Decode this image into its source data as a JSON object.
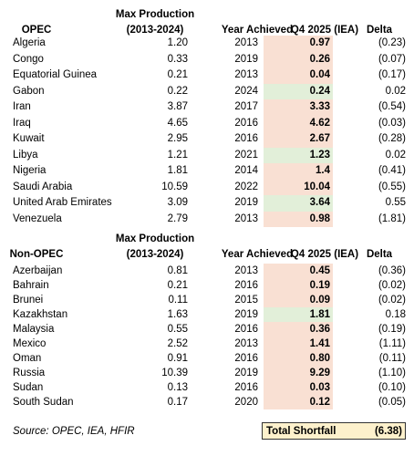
{
  "sections": [
    {
      "group": "OPEC",
      "header": [
        "Max Production",
        "(2013-2024)",
        "Year Achieved",
        "Q4 2025 (IEA)",
        "Delta"
      ],
      "rows": [
        [
          "Algeria",
          "1.20",
          "2013",
          "0.97",
          "(0.23)"
        ],
        [
          "Congo",
          "0.33",
          "2019",
          "0.26",
          "(0.07)"
        ],
        [
          "Equatorial Guinea",
          "0.21",
          "2013",
          "0.04",
          "(0.17)"
        ],
        [
          "Gabon",
          "0.22",
          "2024",
          "0.24",
          "0.02"
        ],
        [
          "Iran",
          "3.87",
          "2017",
          "3.33",
          "(0.54)"
        ],
        [
          "Iraq",
          "4.65",
          "2016",
          "4.62",
          "(0.03)"
        ],
        [
          "Kuwait",
          "2.95",
          "2016",
          "2.67",
          "(0.28)"
        ],
        [
          "Libya",
          "1.21",
          "2021",
          "1.23",
          "0.02"
        ],
        [
          "Nigeria",
          "1.81",
          "2014",
          "1.4",
          "(0.41)"
        ],
        [
          "Saudi Arabia",
          "10.59",
          "2022",
          "10.04",
          "(0.55)"
        ],
        [
          "United Arab Emirates",
          "3.09",
          "2019",
          "3.64",
          "0.55"
        ],
        [
          "Venezuela",
          "2.79",
          "2013",
          "0.98",
          "(1.81)"
        ]
      ]
    },
    {
      "group": "Non-OPEC",
      "header": [
        "Max Production",
        "(2013-2024)",
        "Year Achieved",
        "Q4 2025 (IEA)",
        "Delta"
      ],
      "rows": [
        [
          "Azerbaijan",
          "0.81",
          "2013",
          "0.45",
          "(0.36)"
        ],
        [
          "Bahrain",
          "0.21",
          "2016",
          "0.19",
          "(0.02)"
        ],
        [
          "Brunei",
          "0.11",
          "2015",
          "0.09",
          "(0.02)"
        ],
        [
          "Kazakhstan",
          "1.63",
          "2019",
          "1.81",
          "0.18"
        ],
        [
          "Malaysia",
          "0.55",
          "2016",
          "0.36",
          "(0.19)"
        ],
        [
          "Mexico",
          "2.52",
          "2013",
          "1.41",
          "(1.11)"
        ],
        [
          "Oman",
          "0.91",
          "2016",
          "0.80",
          "(0.11)"
        ],
        [
          "Russia",
          "10.39",
          "2019",
          "9.29",
          "(1.10)"
        ],
        [
          "Sudan",
          "0.13",
          "2016",
          "0.03",
          "(0.10)"
        ],
        [
          "South Sudan",
          "0.17",
          "2020",
          "0.12",
          "(0.05)"
        ]
      ]
    }
  ],
  "source": "Source: OPEC, IEA, HFIR",
  "total": {
    "label": "Total Shortfall",
    "value": "(6.38)"
  }
}
